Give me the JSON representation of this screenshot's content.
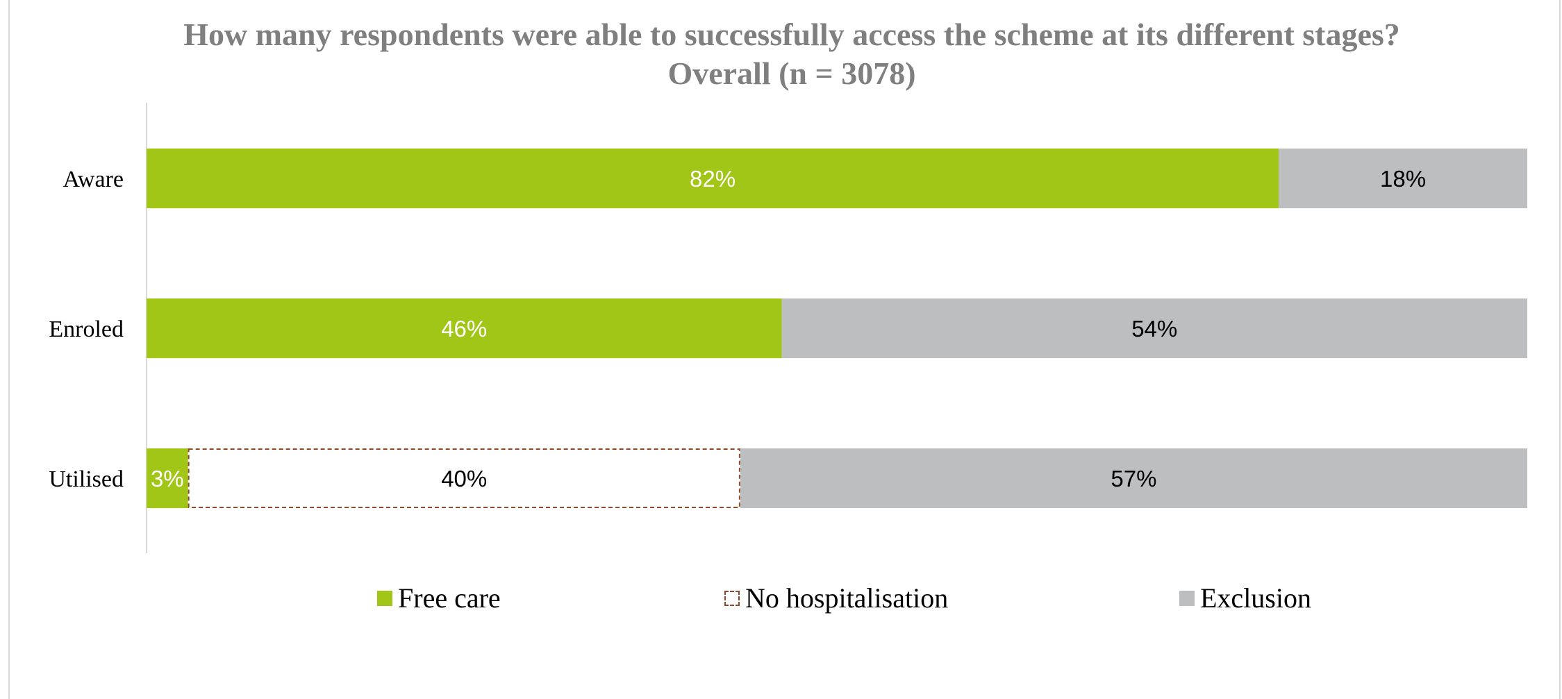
{
  "chart_data": {
    "type": "bar",
    "orientation": "horizontal",
    "stacked": true,
    "title": "How many respondents were able to successfully access the scheme at its different stages?  Overall (n = 3078)",
    "categories": [
      "Aware",
      "Enroled",
      "Utilised"
    ],
    "series": [
      {
        "name": "Free care",
        "values": [
          82,
          46,
          3
        ],
        "labels": [
          "82%",
          "46%",
          "3%"
        ],
        "color": "#a2c617",
        "style": "solid"
      },
      {
        "name": "No hospitalisation",
        "values": [
          0,
          0,
          40
        ],
        "labels": [
          "",
          "",
          "40%"
        ],
        "color": "#ffffff",
        "border_color": "#8b4a2b",
        "style": "dashed-outline"
      },
      {
        "name": "Exclusion",
        "values": [
          18,
          54,
          57
        ],
        "labels": [
          "18%",
          "54%",
          "57%"
        ],
        "color": "#bdbec0",
        "style": "solid"
      }
    ],
    "xlim": [
      0,
      100
    ],
    "grid": false,
    "legend_position": "bottom"
  }
}
